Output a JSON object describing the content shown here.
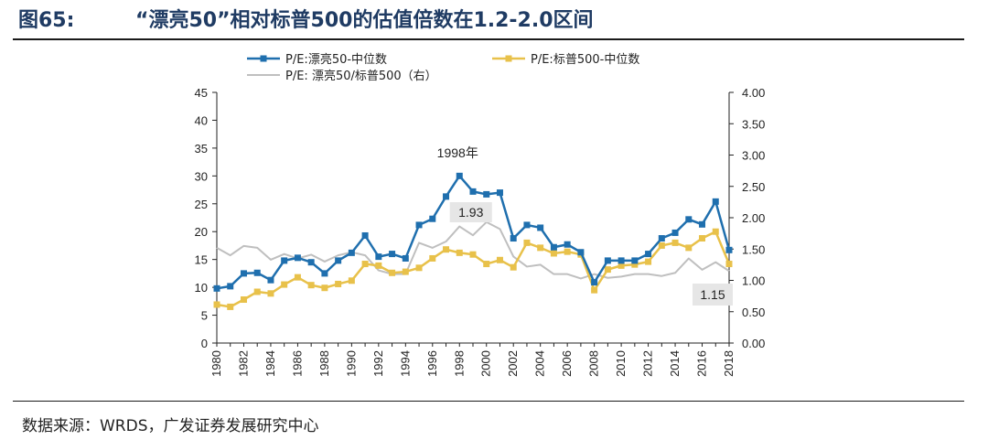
{
  "header": {
    "figure_label": "图65:",
    "title": "“漂亮50”相对标普500的估值倍数在1.2-2.0区间"
  },
  "footer": {
    "source": "数据来源：WRDS，广发证券发展研究中心"
  },
  "chart_data": {
    "type": "line",
    "x": [
      1980,
      1981,
      1982,
      1983,
      1984,
      1985,
      1986,
      1987,
      1988,
      1989,
      1990,
      1991,
      1992,
      1993,
      1994,
      1995,
      1996,
      1997,
      1998,
      1999,
      2000,
      2001,
      2002,
      2003,
      2004,
      2005,
      2006,
      2007,
      2008,
      2009,
      2010,
      2011,
      2012,
      2013,
      2014,
      2015,
      2016,
      2017,
      2018
    ],
    "x_tick_labels": [
      "1980",
      "1982",
      "1984",
      "1986",
      "1988",
      "1990",
      "1992",
      "1994",
      "1996",
      "1998",
      "2000",
      "2002",
      "2004",
      "2006",
      "2008",
      "2010",
      "2012",
      "2014",
      "2016",
      "2018"
    ],
    "y_left": {
      "min": 0,
      "max": 45,
      "ticks": [
        "0",
        "5",
        "10",
        "15",
        "20",
        "25",
        "30",
        "35",
        "40",
        "45"
      ]
    },
    "y_right": {
      "min": 0,
      "max": 4,
      "ticks": [
        "0.00",
        "0.50",
        "1.00",
        "1.50",
        "2.00",
        "2.50",
        "3.00",
        "3.50",
        "4.00"
      ]
    },
    "series": [
      {
        "name": "P/E:漂亮50-中位数",
        "axis": "left",
        "color": "#1f6fae",
        "marker": "square",
        "values": [
          9.8,
          10.2,
          12.5,
          12.6,
          11.3,
          14.8,
          15.3,
          14.5,
          12.5,
          14.8,
          16.2,
          19.3,
          15.5,
          16.0,
          15.2,
          21.2,
          22.3,
          26.3,
          30.0,
          27.2,
          26.7,
          27.0,
          18.8,
          21.2,
          20.7,
          17.2,
          17.7,
          16.3,
          10.9,
          14.8,
          14.8,
          14.8,
          16.0,
          18.8,
          19.8,
          22.2,
          21.3,
          25.4,
          16.7
        ]
      },
      {
        "name": "P/E:标普500-中位数",
        "axis": "left",
        "color": "#e8c14a",
        "marker": "square",
        "values": [
          6.9,
          6.5,
          7.8,
          9.2,
          8.9,
          10.5,
          11.8,
          10.4,
          9.9,
          10.6,
          11.2,
          14.2,
          13.9,
          12.6,
          12.8,
          13.5,
          15.2,
          16.8,
          16.2,
          15.9,
          14.2,
          14.9,
          13.6,
          18.0,
          17.1,
          16.1,
          16.4,
          15.9,
          9.5,
          13.2,
          13.9,
          14.1,
          14.6,
          17.5,
          18.0,
          17.1,
          18.8,
          20.0,
          14.2
        ]
      },
      {
        "name": "P/E: 漂亮50/标普500（右）",
        "axis": "right",
        "color": "#bfbfbf",
        "marker": "none",
        "values": [
          1.52,
          1.4,
          1.55,
          1.52,
          1.33,
          1.42,
          1.35,
          1.41,
          1.3,
          1.4,
          1.45,
          1.4,
          1.16,
          1.1,
          1.1,
          1.6,
          1.52,
          1.62,
          1.86,
          1.72,
          1.93,
          1.82,
          1.38,
          1.22,
          1.25,
          1.1,
          1.1,
          1.03,
          1.1,
          1.04,
          1.06,
          1.1,
          1.1,
          1.07,
          1.12,
          1.35,
          1.17,
          1.29,
          1.15
        ]
      }
    ],
    "annotations": {
      "year_label": "1998年",
      "peak_ratio": "1.93",
      "last_ratio": "1.15"
    },
    "legend_position": "top",
    "grid": false
  }
}
